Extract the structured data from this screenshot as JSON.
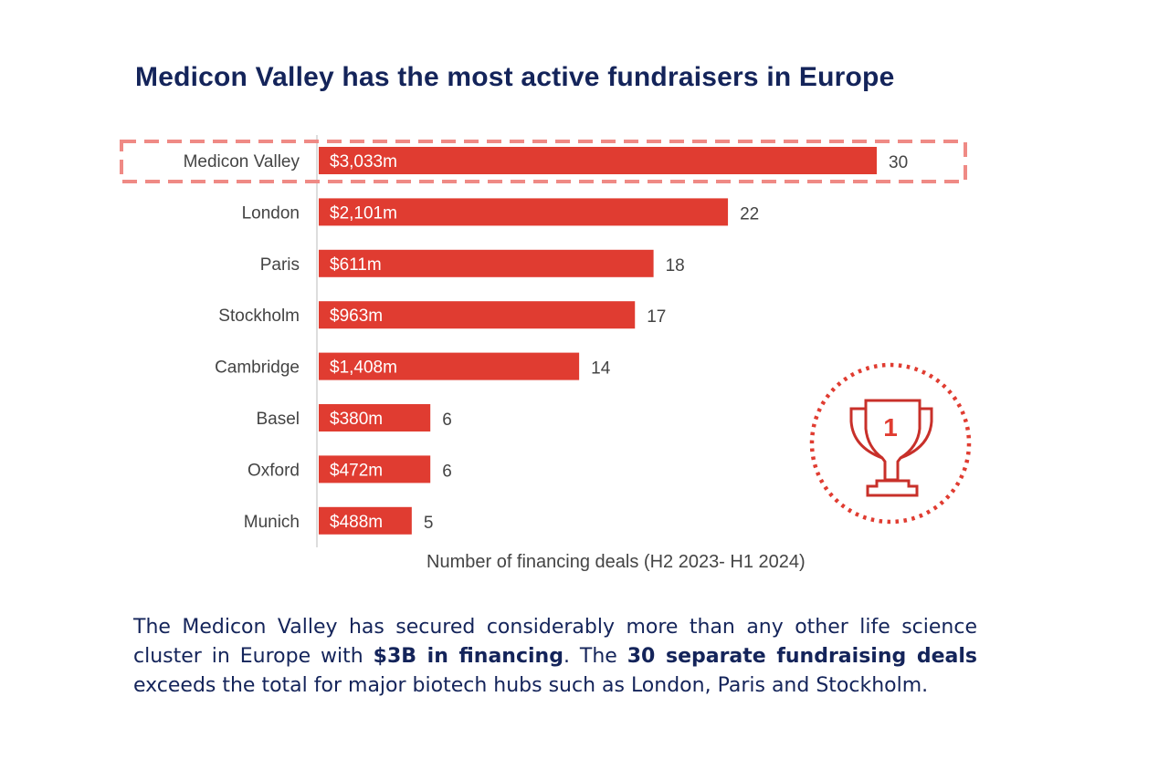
{
  "title": "Medicon Valley has the most active fundraisers in Europe",
  "chart_data": {
    "type": "bar",
    "orientation": "horizontal",
    "categories": [
      "Medicon Valley",
      "London",
      "Paris",
      "Stockholm",
      "Cambridge",
      "Basel",
      "Oxford",
      "Munich"
    ],
    "values": [
      30,
      22,
      18,
      17,
      14,
      6,
      6,
      5
    ],
    "bar_labels": [
      "$3,033m",
      "$2,101m",
      "$611m",
      "$963m",
      "$1,408m",
      "$380m",
      "$472m",
      "$488m"
    ],
    "xlabel": "Number of financing deals (H2 2023-  H1 2024)",
    "xlim": [
      0,
      30
    ],
    "grid": false,
    "highlighted": "Medicon Valley",
    "bar_color": "#e03c31",
    "highlight_color": "#ef8a85"
  },
  "badge": {
    "icon": "trophy-icon",
    "text": "1"
  },
  "paragraph": {
    "p1": "The Medicon Valley has secured considerably more than any other life science cluster in Europe with ",
    "b1": "$3B in financing",
    "p2": ". The ",
    "b2": "30 separate fundraising deals",
    "p3": " exceeds the total for major biotech hubs such as London, Paris and Stockholm."
  }
}
